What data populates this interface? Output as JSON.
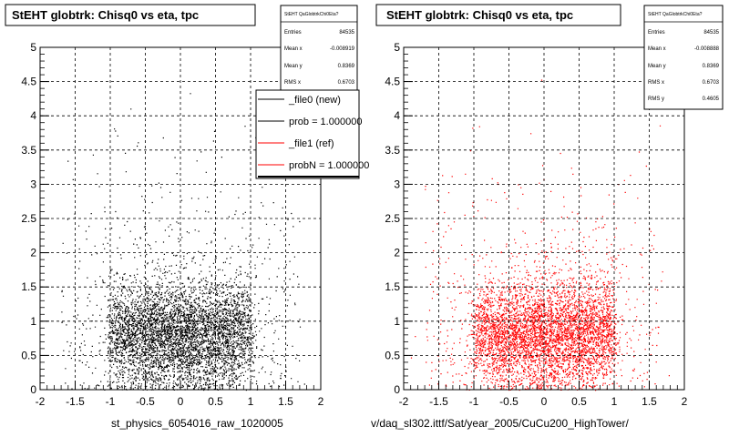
{
  "chart_data": [
    {
      "type": "scatter",
      "title": "StEHT globtrk: Chisq0 vs eta, tpc",
      "xlabel": "st_physics_6054016_raw_1020005",
      "ylabel": "",
      "xlim": [
        -2,
        2
      ],
      "ylim": [
        0,
        5
      ],
      "x_ticks": [
        "-2",
        "-1.5",
        "-1",
        "-0.5",
        "0",
        "0.5",
        "1",
        "1.5",
        "2"
      ],
      "y_ticks": [
        "0",
        "0.5",
        "1",
        "1.5",
        "2",
        "2.5",
        "3",
        "3.5",
        "4",
        "4.5",
        "5"
      ],
      "grid": true,
      "marker_color": "#000000",
      "distribution": {
        "core_x_range": [
          -1.0,
          1.0
        ],
        "core_y_range": [
          0.5,
          1.5
        ],
        "density_note_points": [
          {
            "x": -0.5,
            "y": 1.0
          },
          {
            "x": 0,
            "y": 0.75
          },
          {
            "x": 0.5,
            "y": 1.0
          },
          {
            "x": -1.2,
            "y": 0.9
          },
          {
            "x": 1.2,
            "y": 0.9
          },
          {
            "x": 0,
            "y": 2.0
          },
          {
            "x": -1.5,
            "y": 2.2
          },
          {
            "x": 1.5,
            "y": 2.2
          },
          {
            "x": 0,
            "y": 3.0
          }
        ]
      },
      "stats": {
        "header": "StEHT QaGlobtrkChi0Eta?",
        "rows": [
          {
            "label": "Entries",
            "value": "84535"
          },
          {
            "label": "Mean x",
            "value": "-0.008919"
          },
          {
            "label": "Mean y",
            "value": "0.8369"
          },
          {
            "label": "RMS x",
            "value": "0.6703"
          }
        ]
      },
      "legend": {
        "placement": "top-right",
        "entries": [
          {
            "label": "_file0 (new)",
            "color": "#000000"
          },
          {
            "label": "prob = 1.000000",
            "color": "#000000"
          },
          {
            "label": "_file1 (ref)",
            "color": "#ff0000"
          },
          {
            "label": "probN = 1.000000",
            "color": "#ff0000"
          }
        ]
      }
    },
    {
      "type": "scatter",
      "title": "StEHT globtrk: Chisq0 vs eta, tpc",
      "xlabel": "v/daq_sl302.ittf/Sat/year_2005/CuCu200_HighTower/",
      "ylabel": "",
      "xlim": [
        -2,
        2
      ],
      "ylim": [
        0,
        5
      ],
      "x_ticks": [
        "-2",
        "-1.5",
        "-1",
        "-0.5",
        "0",
        "0.5",
        "1",
        "1.5",
        "2"
      ],
      "y_ticks": [
        "0",
        "0.5",
        "1",
        "1.5",
        "2",
        "2.5",
        "3",
        "3.5",
        "4",
        "4.5",
        "5"
      ],
      "grid": true,
      "marker_color": "#ff0000",
      "distribution": {
        "core_x_range": [
          -1.0,
          1.0
        ],
        "core_y_range": [
          0.5,
          1.5
        ]
      },
      "stats": {
        "header": "StEHT QaGlobtrkChi0Eta?",
        "rows": [
          {
            "label": "Entries",
            "value": "84535"
          },
          {
            "label": "Mean x",
            "value": "-0.008888"
          },
          {
            "label": "Mean y",
            "value": "0.8369"
          },
          {
            "label": "RMS x",
            "value": "0.6703"
          },
          {
            "label": "RMS y",
            "value": "0.4605"
          }
        ]
      }
    }
  ]
}
